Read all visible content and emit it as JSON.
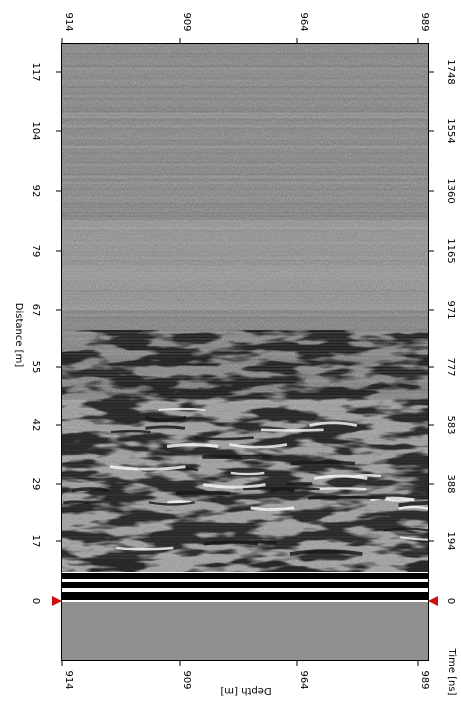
{
  "axes": {
    "left": {
      "title": "Distance [m]",
      "ticks": [
        "0",
        "17",
        "29",
        "42",
        "55",
        "67",
        "79",
        "92",
        "104",
        "117"
      ]
    },
    "right": {
      "title": "Time [ns]",
      "ticks": [
        "0",
        "194",
        "388",
        "583",
        "777",
        "971",
        "1165",
        "1360",
        "1554",
        "1748"
      ]
    },
    "top": {
      "ticks": [
        "914",
        "909",
        "964",
        "989"
      ]
    },
    "bottom": {
      "title": "Depth [m]",
      "ticks": [
        "914",
        "909",
        "964",
        "989"
      ]
    }
  },
  "colors": {
    "background": "#ffffff",
    "frame": "#000000",
    "marker": "#cc1111",
    "noise_gray": "#8a8a8a",
    "lower_gray": "#909090"
  },
  "markers": [
    "left-zero-marker",
    "right-zero-marker"
  ]
}
